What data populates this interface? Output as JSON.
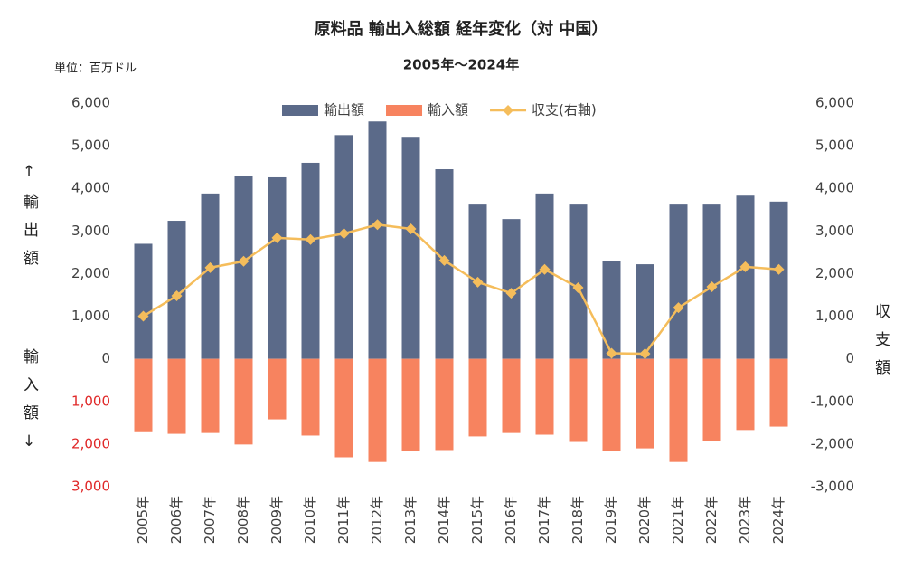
{
  "chart_data": {
    "type": "bar_line",
    "title": "原料品 輸出入総額 経年変化（対 中国）",
    "subtitle": "2005年～2024年",
    "unit": "単位：百万ドル",
    "ylabel_top": "↑輸出額",
    "ylabel_bottom": "輸入額↓",
    "y2label": "収支額",
    "categories": [
      "2005年",
      "2006年",
      "2007年",
      "2008年",
      "2009年",
      "2010年",
      "2011年",
      "2012年",
      "2013年",
      "2014年",
      "2015年",
      "2016年",
      "2017年",
      "2018年",
      "2019年",
      "2020年",
      "2021年",
      "2022年",
      "2023年",
      "2024年"
    ],
    "series": [
      {
        "name": "輸出額",
        "color": "#5b6a89",
        "kind": "bar",
        "values": [
          2700,
          3240,
          3880,
          4300,
          4260,
          4600,
          5250,
          5570,
          5210,
          4450,
          3620,
          3280,
          3880,
          3620,
          2290,
          2220,
          3620,
          3620,
          3830,
          3690
        ]
      },
      {
        "name": "輸入額",
        "color": "#f7835f",
        "kind": "bar",
        "values": [
          -1700,
          -1760,
          -1740,
          -2010,
          -1420,
          -1800,
          -2310,
          -2420,
          -2160,
          -2140,
          -1820,
          -1740,
          -1780,
          -1950,
          -2160,
          -2100,
          -2420,
          -1930,
          -1670,
          -1590
        ]
      },
      {
        "name": "収支(右軸)",
        "color": "#f5bd5b",
        "kind": "line",
        "axis": "y2",
        "values": [
          1000,
          1480,
          2140,
          2290,
          2840,
          2800,
          2940,
          3150,
          3050,
          2310,
          1800,
          1540,
          2100,
          1670,
          130,
          120,
          1200,
          1690,
          2160,
          2100
        ]
      }
    ],
    "ylim": [
      -3000,
      6000
    ],
    "yticks": [
      {
        "value": -3000,
        "label": "3,000"
      },
      {
        "value": -2000,
        "label": "2,000"
      },
      {
        "value": -1000,
        "label": "1,000"
      },
      0,
      {
        "value": 1000,
        "label": "1,000"
      },
      {
        "value": 2000,
        "label": "2,000"
      },
      {
        "value": 3000,
        "label": "3,000"
      },
      {
        "value": 4000,
        "label": "4,000"
      },
      {
        "value": 5000,
        "label": "5,000"
      },
      {
        "value": 6000,
        "label": "6,000"
      }
    ],
    "y2lim": [
      -3000,
      6000
    ],
    "y2ticks": [
      {
        "value": -3000,
        "label": "-3,000"
      },
      {
        "value": -2000,
        "label": "-2,000"
      },
      {
        "value": -1000,
        "label": "-1,000"
      },
      0,
      {
        "value": 1000,
        "label": "1,000"
      },
      {
        "value": 2000,
        "label": "2,000"
      },
      {
        "value": 3000,
        "label": "3,000"
      },
      {
        "value": 4000,
        "label": "4,000"
      },
      {
        "value": 5000,
        "label": "5,000"
      },
      {
        "value": 6000,
        "label": "6,000"
      }
    ],
    "negative_tick_color": "#e02828",
    "legend": "top"
  }
}
